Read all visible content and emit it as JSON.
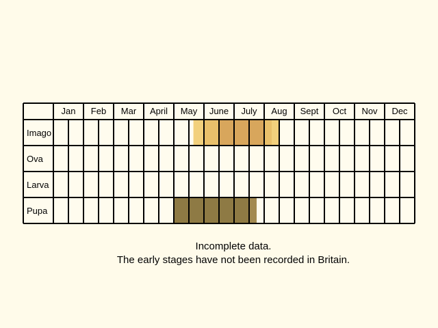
{
  "chart_data": {
    "type": "table",
    "title": "",
    "months": [
      "Jan",
      "Feb",
      "Mar",
      "April",
      "May",
      "June",
      "July",
      "Aug",
      "Sept",
      "Oct",
      "Nov",
      "Dec"
    ],
    "stages": [
      "Imago",
      "Ova",
      "Larva",
      "Pupa"
    ],
    "periods": [
      {
        "stage": "Imago",
        "bands": [
          {
            "start": 4.65,
            "end": 5.0,
            "color": "#f2d07c"
          },
          {
            "start": 5.0,
            "end": 5.5,
            "color": "#e9c06b"
          },
          {
            "start": 5.5,
            "end": 7.0,
            "color": "#d8a65c"
          },
          {
            "start": 7.0,
            "end": 7.25,
            "color": "#e9c06b"
          },
          {
            "start": 7.25,
            "end": 7.5,
            "color": "#f2d07c"
          }
        ]
      },
      {
        "stage": "Ova",
        "bands": []
      },
      {
        "stage": "Larva",
        "bands": []
      },
      {
        "stage": "Pupa",
        "bands": [
          {
            "start": 4.0,
            "end": 6.5,
            "color": "#8e7a44"
          },
          {
            "start": 6.5,
            "end": 6.75,
            "color": "#a38a50"
          }
        ]
      }
    ]
  },
  "notes": {
    "line1": "Incomplete data.",
    "line2": "The early stages have not been recorded in Britain."
  },
  "colors": {
    "background": "#fffbea",
    "cell": "#fffcee",
    "grid": "#000000"
  }
}
